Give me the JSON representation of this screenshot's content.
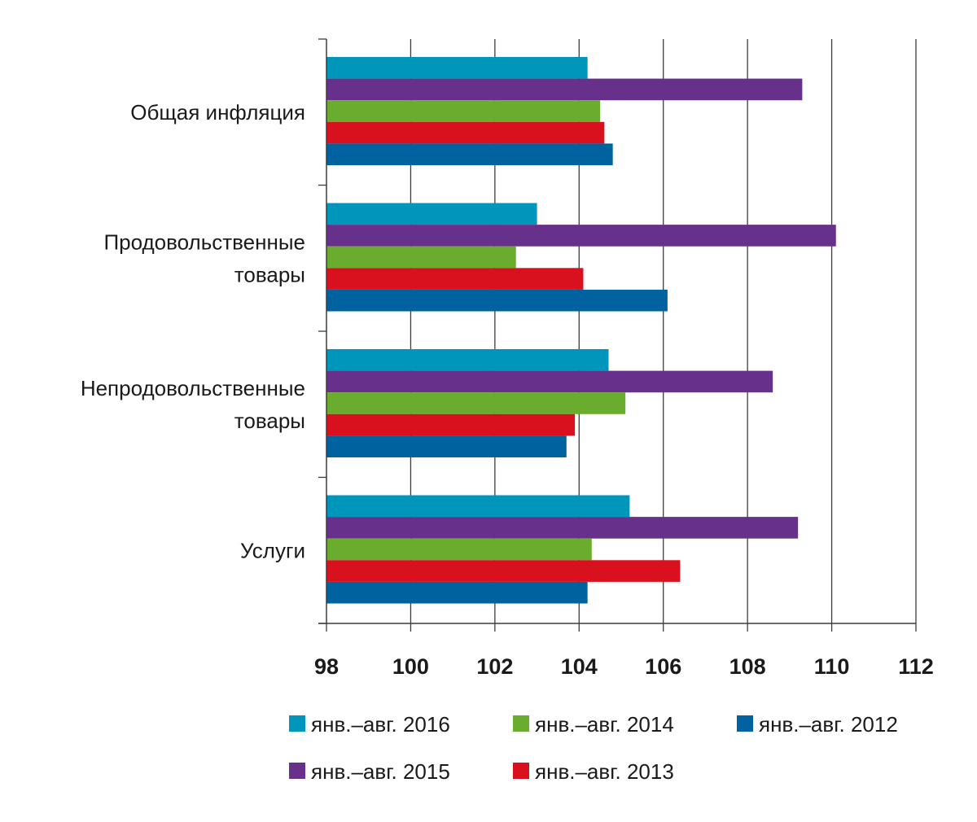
{
  "chart_data": {
    "type": "bar",
    "orientation": "horizontal",
    "categories": [
      [
        "Общая инфляция"
      ],
      [
        "Продовольственные",
        "товары"
      ],
      [
        "Непродовольственные",
        "товары"
      ],
      [
        "Услуги"
      ]
    ],
    "series": [
      {
        "name": "янв.–авг. 2016",
        "color": "#0095bb",
        "values": [
          104.2,
          103.0,
          104.7,
          105.2
        ]
      },
      {
        "name": "янв.–авг. 2015",
        "color": "#67308a",
        "values": [
          109.3,
          110.1,
          108.6,
          109.2
        ]
      },
      {
        "name": "янв.–авг. 2014",
        "color": "#6aac2e",
        "values": [
          104.5,
          102.5,
          105.1,
          104.3
        ]
      },
      {
        "name": "янв.–авг. 2013",
        "color": "#d9101e",
        "values": [
          104.6,
          104.1,
          103.9,
          106.4
        ]
      },
      {
        "name": "янв.–авг. 2012",
        "color": "#00629e",
        "values": [
          104.8,
          106.1,
          103.7,
          104.2
        ]
      }
    ],
    "xlim": [
      98,
      112
    ],
    "xticks": [
      "98",
      "100",
      "102",
      "104",
      "106",
      "108",
      "110",
      "112"
    ],
    "grid": true,
    "legend_order": [
      0,
      2,
      4,
      1,
      3
    ],
    "legend_placement": "bottom",
    "title": "",
    "xlabel": "",
    "ylabel": ""
  }
}
